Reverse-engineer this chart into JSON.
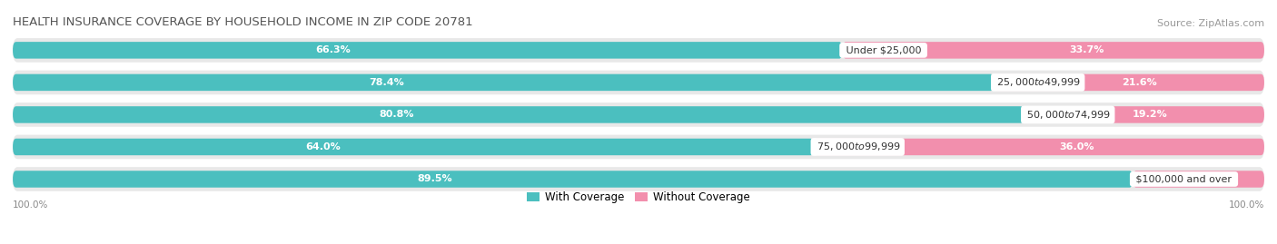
{
  "title": "HEALTH INSURANCE COVERAGE BY HOUSEHOLD INCOME IN ZIP CODE 20781",
  "source": "Source: ZipAtlas.com",
  "categories": [
    "Under $25,000",
    "$25,000 to $49,999",
    "$50,000 to $74,999",
    "$75,000 to $99,999",
    "$100,000 and over"
  ],
  "with_coverage": [
    66.3,
    78.4,
    80.8,
    64.0,
    89.5
  ],
  "without_coverage": [
    33.7,
    21.6,
    19.2,
    36.0,
    10.5
  ],
  "color_with": "#4BBFBF",
  "color_without": "#F28FAD",
  "color_bar_bg": "#E8E8E8",
  "legend_with": "With Coverage",
  "legend_without": "Without Coverage",
  "xlim_left_label": "100.0%",
  "xlim_right_label": "100.0%",
  "background_color": "#FFFFFF",
  "title_fontsize": 9.5,
  "source_fontsize": 8,
  "bar_label_fontsize": 8,
  "category_fontsize": 8
}
